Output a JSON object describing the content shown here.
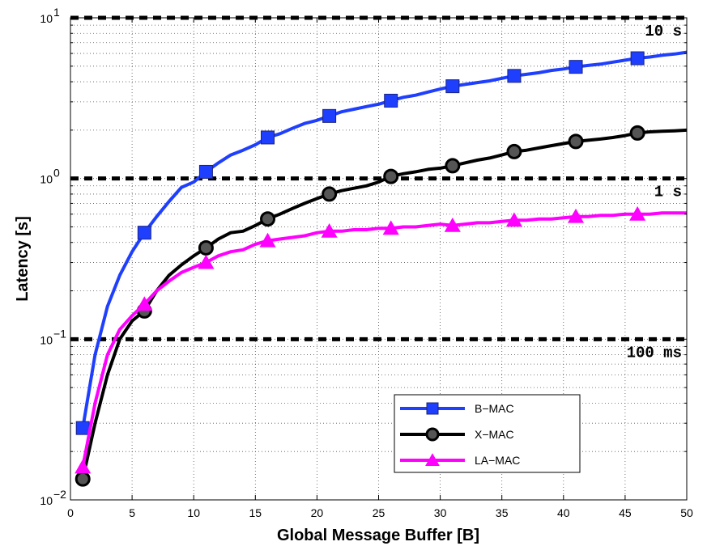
{
  "chart_data": {
    "type": "line",
    "title": "",
    "xlabel": "Global Message Buffer [B]",
    "ylabel": "Latency [s]",
    "xlim": [
      0,
      50
    ],
    "ylim": [
      0.01,
      10
    ],
    "yscale": "log",
    "grid": true,
    "legend_position": "bottom-right",
    "x_ticks": [
      0,
      5,
      10,
      15,
      20,
      25,
      30,
      35,
      40,
      45,
      50
    ],
    "x_tick_labels": [
      "0",
      "5",
      "10",
      "15",
      "20",
      "25",
      "30",
      "35",
      "40",
      "45",
      "50"
    ],
    "y_ticks": [
      {
        "value": 0.01,
        "base": "10",
        "exp": "−2"
      },
      {
        "value": 0.1,
        "base": "10",
        "exp": "−1"
      },
      {
        "value": 1,
        "base": "10",
        "exp": "0"
      },
      {
        "value": 10,
        "base": "10",
        "exp": "1"
      }
    ],
    "reference_lines": [
      {
        "value": 10,
        "label": "10 s"
      },
      {
        "value": 1,
        "label": "1 s"
      },
      {
        "value": 0.1,
        "label": "100 ms"
      }
    ],
    "series": [
      {
        "name": "B−MAC",
        "color": "#1f3fff",
        "marker": "square",
        "x": [
          1,
          2,
          3,
          4,
          5,
          6,
          7,
          8,
          9,
          10,
          11,
          12,
          13,
          14,
          15,
          16,
          17,
          18,
          19,
          20,
          21,
          22,
          23,
          24,
          25,
          26,
          27,
          28,
          29,
          30,
          31,
          32,
          33,
          34,
          35,
          36,
          37,
          38,
          39,
          40,
          41,
          42,
          43,
          44,
          45,
          46,
          47,
          48,
          49,
          50
        ],
        "y": [
          0.028,
          0.08,
          0.16,
          0.25,
          0.35,
          0.46,
          0.58,
          0.72,
          0.88,
          0.95,
          1.1,
          1.25,
          1.4,
          1.5,
          1.62,
          1.8,
          1.9,
          2.05,
          2.2,
          2.3,
          2.45,
          2.6,
          2.7,
          2.8,
          2.9,
          3.05,
          3.2,
          3.3,
          3.45,
          3.6,
          3.75,
          3.85,
          3.95,
          4.05,
          4.2,
          4.35,
          4.45,
          4.55,
          4.7,
          4.8,
          4.95,
          5.05,
          5.15,
          5.3,
          5.45,
          5.6,
          5.7,
          5.85,
          5.95,
          6.1
        ],
        "marker_x": [
          1,
          6,
          11,
          16,
          21,
          26,
          31,
          36,
          41,
          46
        ]
      },
      {
        "name": "X−MAC",
        "color": "#000000",
        "marker": "circle",
        "x": [
          1,
          2,
          3,
          4,
          5,
          6,
          7,
          8,
          9,
          10,
          11,
          12,
          13,
          14,
          15,
          16,
          17,
          18,
          19,
          20,
          21,
          22,
          23,
          24,
          25,
          26,
          27,
          28,
          29,
          30,
          31,
          32,
          33,
          34,
          35,
          36,
          37,
          38,
          39,
          40,
          41,
          42,
          43,
          44,
          45,
          46,
          47,
          48,
          49,
          50
        ],
        "y": [
          0.0135,
          0.03,
          0.06,
          0.1,
          0.13,
          0.15,
          0.2,
          0.25,
          0.29,
          0.33,
          0.37,
          0.42,
          0.46,
          0.47,
          0.51,
          0.56,
          0.6,
          0.65,
          0.7,
          0.75,
          0.8,
          0.84,
          0.87,
          0.9,
          0.95,
          1.03,
          1.07,
          1.1,
          1.14,
          1.16,
          1.2,
          1.25,
          1.3,
          1.34,
          1.4,
          1.47,
          1.5,
          1.55,
          1.6,
          1.65,
          1.7,
          1.73,
          1.76,
          1.8,
          1.85,
          1.92,
          1.95,
          1.97,
          1.98,
          2.0
        ],
        "marker_x": [
          1,
          6,
          11,
          16,
          21,
          26,
          31,
          36,
          41,
          46
        ]
      },
      {
        "name": "LA−MAC",
        "color": "#ff00ff",
        "marker": "triangle",
        "x": [
          1,
          2,
          3,
          4,
          5,
          6,
          7,
          8,
          9,
          10,
          11,
          12,
          13,
          14,
          15,
          16,
          17,
          18,
          19,
          20,
          21,
          22,
          23,
          24,
          25,
          26,
          27,
          28,
          29,
          30,
          31,
          32,
          33,
          34,
          35,
          36,
          37,
          38,
          39,
          40,
          41,
          42,
          43,
          44,
          45,
          46,
          47,
          48,
          49,
          50
        ],
        "y": [
          0.016,
          0.04,
          0.08,
          0.115,
          0.14,
          0.165,
          0.2,
          0.23,
          0.26,
          0.28,
          0.3,
          0.33,
          0.35,
          0.36,
          0.39,
          0.41,
          0.42,
          0.43,
          0.44,
          0.46,
          0.47,
          0.47,
          0.48,
          0.48,
          0.49,
          0.49,
          0.5,
          0.5,
          0.51,
          0.52,
          0.51,
          0.52,
          0.53,
          0.53,
          0.54,
          0.55,
          0.55,
          0.56,
          0.56,
          0.57,
          0.58,
          0.58,
          0.59,
          0.59,
          0.6,
          0.6,
          0.6,
          0.61,
          0.61,
          0.61
        ],
        "marker_x": [
          1,
          6,
          11,
          16,
          21,
          26,
          31,
          36,
          41,
          46
        ]
      }
    ]
  }
}
